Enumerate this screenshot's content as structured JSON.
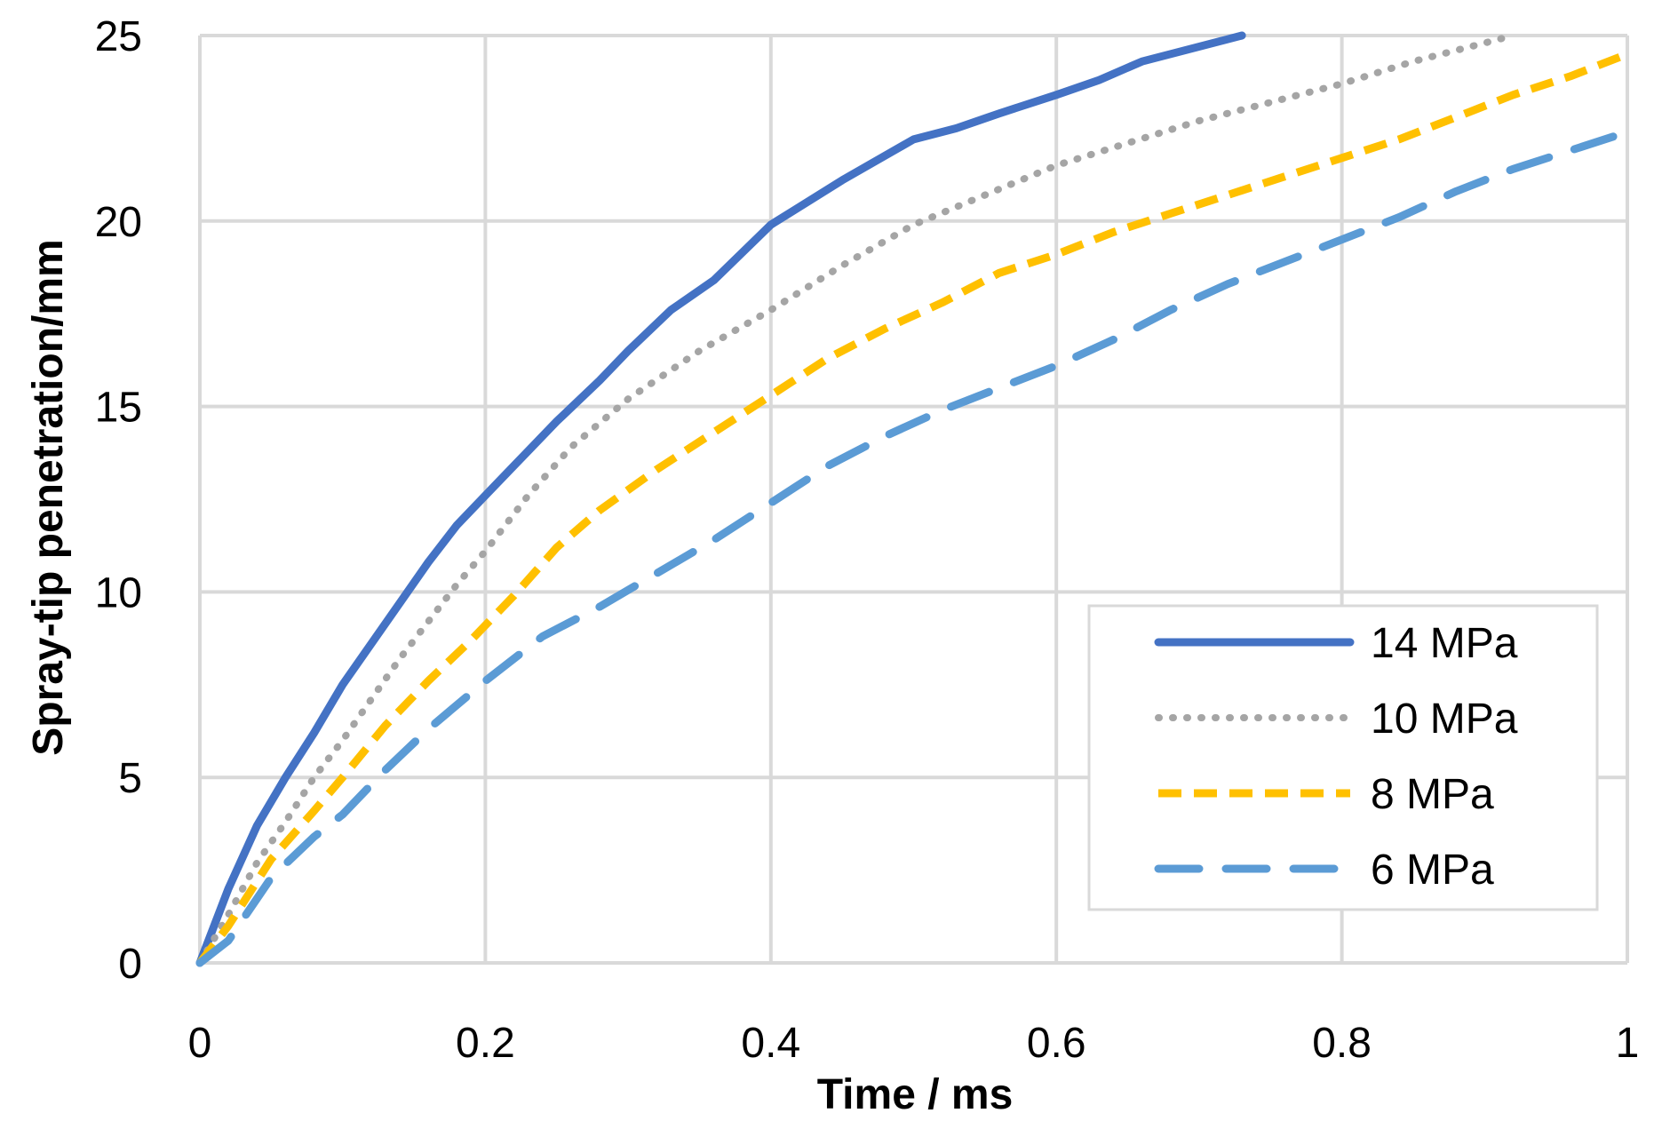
{
  "chart_data": {
    "type": "line",
    "title": "",
    "xlabel": "Time / ms",
    "ylabel": "Spray-tip penetration/mm",
    "xlim": [
      0,
      1
    ],
    "ylim": [
      0,
      25
    ],
    "xticks": [
      0,
      0.2,
      0.4,
      0.6,
      0.8,
      1
    ],
    "yticks": [
      0,
      5,
      10,
      15,
      20,
      25
    ],
    "xtick_labels": [
      "0",
      "0.2",
      "0.4",
      "0.6",
      "0.8",
      "1"
    ],
    "ytick_labels": [
      "0",
      "5",
      "10",
      "15",
      "20",
      "25"
    ],
    "grid": true,
    "legend_position": "bottom-right",
    "series": [
      {
        "name": "14 MPa",
        "color": "#4472C4",
        "style": "solid",
        "x": [
          0,
          0.02,
          0.04,
          0.06,
          0.08,
          0.1,
          0.12,
          0.14,
          0.16,
          0.18,
          0.2,
          0.22,
          0.25,
          0.28,
          0.3,
          0.33,
          0.36,
          0.4,
          0.45,
          0.5,
          0.53,
          0.56,
          0.6,
          0.63,
          0.66,
          0.69,
          0.72,
          0.73
        ],
        "y": [
          0,
          2.0,
          3.7,
          5.0,
          6.2,
          7.5,
          8.6,
          9.7,
          10.8,
          11.8,
          12.6,
          13.4,
          14.6,
          15.7,
          16.5,
          17.6,
          18.4,
          19.9,
          21.1,
          22.2,
          22.5,
          22.9,
          23.4,
          23.8,
          24.3,
          24.6,
          24.9,
          25.0
        ]
      },
      {
        "name": "10 MPa",
        "color": "#A5A5A5",
        "style": "dotted",
        "x": [
          0,
          0.02,
          0.04,
          0.06,
          0.08,
          0.1,
          0.12,
          0.14,
          0.16,
          0.18,
          0.2,
          0.23,
          0.26,
          0.3,
          0.35,
          0.4,
          0.45,
          0.5,
          0.55,
          0.6,
          0.65,
          0.7,
          0.75,
          0.8,
          0.85,
          0.9,
          0.92
        ],
        "y": [
          0,
          1.3,
          2.7,
          3.8,
          5.0,
          6.0,
          7.1,
          8.2,
          9.2,
          10.2,
          11.1,
          12.6,
          13.9,
          15.2,
          16.5,
          17.6,
          18.8,
          19.9,
          20.7,
          21.5,
          22.1,
          22.7,
          23.2,
          23.7,
          24.3,
          24.8,
          25.0
        ]
      },
      {
        "name": "8 MPa",
        "color": "#FFC000",
        "style": "dashed",
        "x": [
          0,
          0.02,
          0.05,
          0.08,
          0.1,
          0.13,
          0.16,
          0.19,
          0.22,
          0.25,
          0.28,
          0.32,
          0.36,
          0.4,
          0.44,
          0.48,
          0.52,
          0.56,
          0.6,
          0.64,
          0.68,
          0.72,
          0.76,
          0.8,
          0.84,
          0.88,
          0.92,
          0.96,
          1.0
        ],
        "y": [
          0,
          1.0,
          2.8,
          4.1,
          5.0,
          6.4,
          7.6,
          8.7,
          9.9,
          11.2,
          12.2,
          13.3,
          14.3,
          15.3,
          16.3,
          17.1,
          17.8,
          18.6,
          19.1,
          19.7,
          20.2,
          20.7,
          21.2,
          21.7,
          22.2,
          22.8,
          23.4,
          23.9,
          24.5
        ]
      },
      {
        "name": "6 MPa",
        "color": "#5B9BD5",
        "style": "long-dashed",
        "x": [
          0,
          0.02,
          0.05,
          0.08,
          0.1,
          0.13,
          0.16,
          0.2,
          0.24,
          0.28,
          0.32,
          0.36,
          0.4,
          0.44,
          0.48,
          0.52,
          0.56,
          0.6,
          0.64,
          0.68,
          0.72,
          0.76,
          0.8,
          0.84,
          0.88,
          0.92,
          0.96,
          1.0
        ],
        "y": [
          0,
          0.6,
          2.3,
          3.4,
          4.0,
          5.2,
          6.3,
          7.6,
          8.8,
          9.6,
          10.5,
          11.4,
          12.4,
          13.4,
          14.2,
          14.9,
          15.5,
          16.1,
          16.8,
          17.6,
          18.3,
          18.9,
          19.5,
          20.1,
          20.8,
          21.4,
          21.9,
          22.4
        ]
      }
    ]
  }
}
